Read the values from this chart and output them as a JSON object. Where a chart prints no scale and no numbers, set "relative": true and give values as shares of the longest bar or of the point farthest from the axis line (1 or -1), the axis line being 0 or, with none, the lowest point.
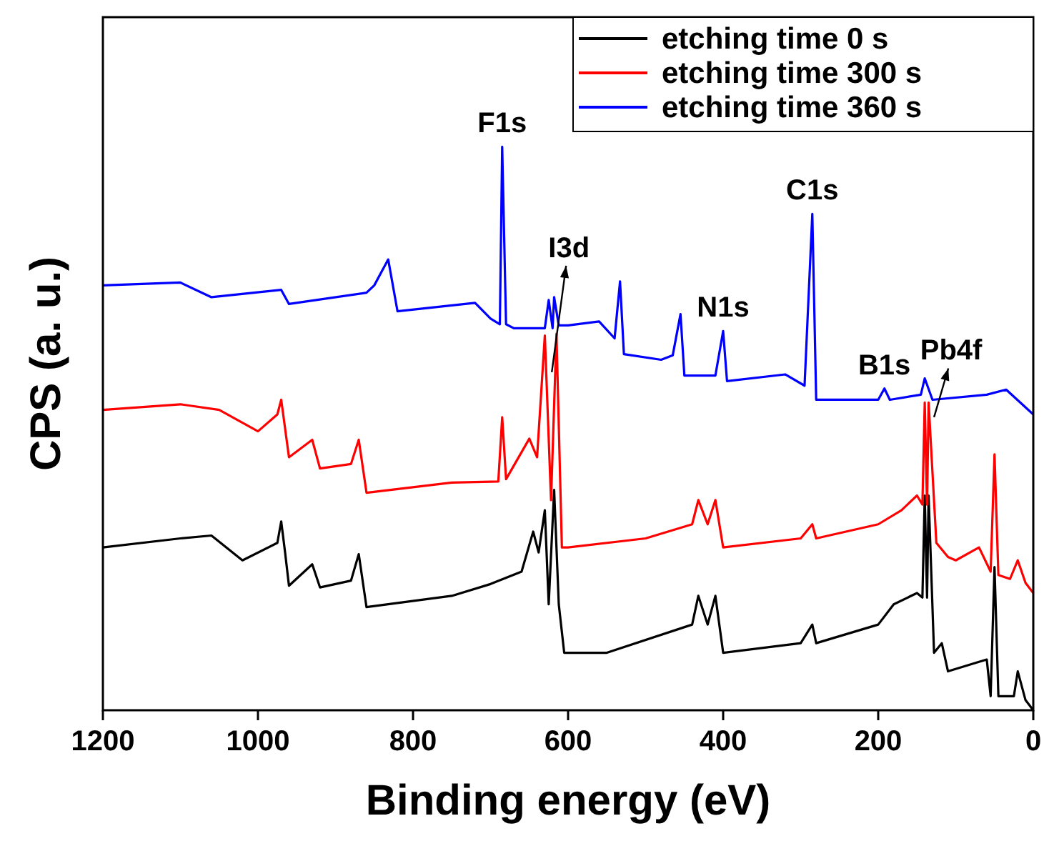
{
  "chart_data": {
    "type": "line",
    "relative": true,
    "xlabel": "Binding energy (eV)",
    "ylabel": "CPS (a. u.)",
    "xlim": [
      1200,
      0
    ],
    "xticks": [
      1200,
      1000,
      800,
      600,
      400,
      200,
      0
    ],
    "legend": "top right",
    "grid": false,
    "tick_labels": "x",
    "series": [
      {
        "name": "etching time 0 s",
        "color": "#000000",
        "x": [
          1200,
          1100,
          1060,
          1020,
          975,
          970,
          965,
          960,
          930,
          920,
          880,
          870,
          860,
          750,
          700,
          660,
          645,
          638,
          630,
          625,
          618,
          612,
          605,
          550,
          440,
          432,
          420,
          410,
          400,
          300,
          285,
          280,
          200,
          180,
          150,
          143,
          140,
          137,
          135,
          128,
          118,
          110,
          70,
          60,
          55,
          50,
          45,
          25,
          20,
          10,
          0
        ],
        "values": [
          0.289,
          0.305,
          0.31,
          0.266,
          0.297,
          0.335,
          0.28,
          0.221,
          0.259,
          0.218,
          0.23,
          0.277,
          0.183,
          0.203,
          0.224,
          0.246,
          0.317,
          0.28,
          0.355,
          0.188,
          0.391,
          0.188,
          0.102,
          0.102,
          0.152,
          0.203,
          0.152,
          0.203,
          0.102,
          0.119,
          0.152,
          0.119,
          0.152,
          0.188,
          0.208,
          0.2,
          0.381,
          0.2,
          0.381,
          0.102,
          0.119,
          0.069,
          0.086,
          0.09,
          0.025,
          0.254,
          0.025,
          0.025,
          0.069,
          0.018,
          0
        ]
      },
      {
        "name": "etching time 300 s",
        "color": "#ff0000",
        "x": [
          1200,
          1100,
          1050,
          1000,
          975,
          970,
          960,
          930,
          920,
          880,
          870,
          860,
          750,
          690,
          685,
          680,
          650,
          640,
          630,
          622,
          615,
          608,
          600,
          500,
          440,
          432,
          420,
          410,
          400,
          300,
          285,
          280,
          200,
          170,
          150,
          143,
          140,
          137,
          135,
          125,
          110,
          100,
          70,
          55,
          50,
          45,
          30,
          20,
          10,
          0
        ],
        "values": [
          0.533,
          0.543,
          0.533,
          0.495,
          0.525,
          0.551,
          0.449,
          0.48,
          0.429,
          0.437,
          0.48,
          0.386,
          0.404,
          0.406,
          0.52,
          0.41,
          0.482,
          0.449,
          0.665,
          0.373,
          0.668,
          0.289,
          0.289,
          0.305,
          0.33,
          0.373,
          0.33,
          0.373,
          0.289,
          0.305,
          0.33,
          0.305,
          0.33,
          0.355,
          0.381,
          0.365,
          0.546,
          0.365,
          0.546,
          0.297,
          0.272,
          0.266,
          0.289,
          0.246,
          0.454,
          0.24,
          0.233,
          0.266,
          0.226,
          0.208
        ]
      },
      {
        "name": "etching time 360 s",
        "color": "#0000ff",
        "x": [
          1200,
          1100,
          1060,
          970,
          960,
          860,
          850,
          832,
          820,
          720,
          700,
          688,
          685,
          680,
          670,
          630,
          625,
          620,
          618,
          612,
          600,
          560,
          540,
          533,
          528,
          480,
          465,
          455,
          450,
          410,
          400,
          395,
          320,
          295,
          285,
          280,
          200,
          192,
          185,
          145,
          140,
          130,
          60,
          35,
          0
        ],
        "values": [
          0.754,
          0.759,
          0.733,
          0.746,
          0.721,
          0.741,
          0.754,
          0.8,
          0.708,
          0.723,
          0.695,
          0.685,
          1,
          0.685,
          0.678,
          0.678,
          0.728,
          0.678,
          0.733,
          0.683,
          0.683,
          0.69,
          0.66,
          0.761,
          0.632,
          0.622,
          0.63,
          0.703,
          0.594,
          0.594,
          0.673,
          0.584,
          0.596,
          0.576,
          0.881,
          0.551,
          0.551,
          0.571,
          0.551,
          0.56,
          0.589,
          0.551,
          0.56,
          0.569,
          0.525
        ]
      }
    ],
    "annotations": [
      {
        "text": "F1s",
        "x": 685,
        "y": 1
      },
      {
        "text": "I3d",
        "x": 621,
        "y": 0.6
      },
      {
        "text": "N1s",
        "x": 400,
        "y": 0.673
      },
      {
        "text": "C1s",
        "x": 285,
        "y": 0.881
      },
      {
        "text": "B1s",
        "x": 192,
        "y": 0.571
      },
      {
        "text": "Pb4f",
        "x": 128,
        "y": 0.52
      }
    ]
  }
}
